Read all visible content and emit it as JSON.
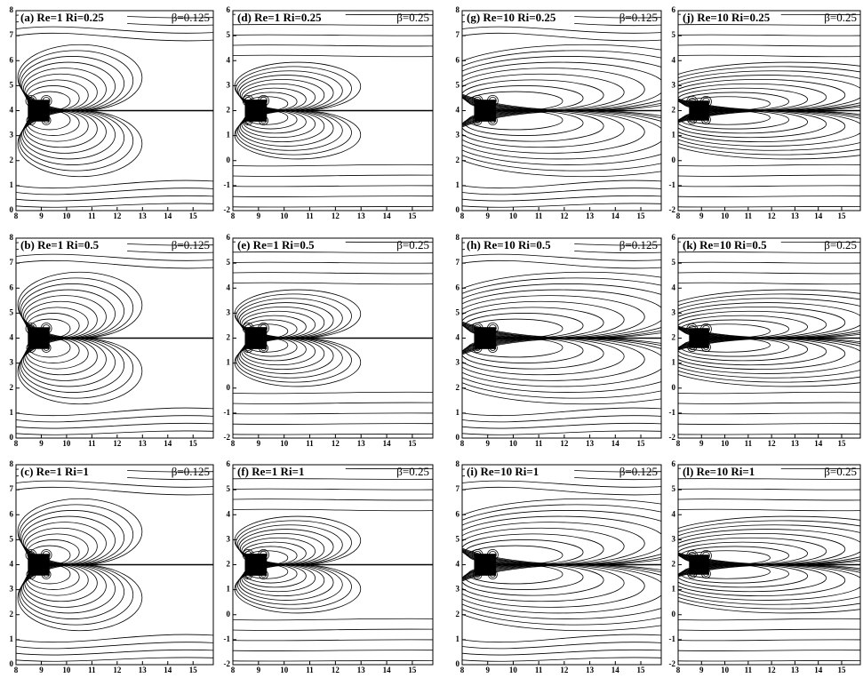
{
  "chart_data": [
    {
      "type": "contour",
      "title": "(a) Re=1 Ri=0.25",
      "annotation": "β=0.125",
      "xlim": [
        8,
        15.8
      ],
      "ylim": [
        0,
        8
      ],
      "xticks": [
        8,
        9,
        10,
        11,
        12,
        13,
        14,
        15
      ],
      "yticks": [
        0,
        1,
        2,
        3,
        4,
        5,
        6,
        7,
        8
      ]
    },
    {
      "type": "contour",
      "title": "(d) Re=1 Ri=0.25",
      "annotation": "β=0.25",
      "xlim": [
        8,
        15.8
      ],
      "ylim": [
        -2,
        6
      ],
      "xticks": [
        8,
        9,
        10,
        11,
        12,
        13,
        14,
        15
      ],
      "yticks": [
        -2,
        -1,
        0,
        1,
        2,
        3,
        4,
        5,
        6
      ]
    },
    {
      "type": "contour",
      "title": "(g) Re=10 Ri=0.25",
      "annotation": "β=0.125",
      "xlim": [
        8,
        15.8
      ],
      "ylim": [
        0,
        8
      ],
      "xticks": [
        8,
        9,
        10,
        11,
        12,
        13,
        14,
        15
      ],
      "yticks": [
        0,
        1,
        2,
        3,
        4,
        5,
        6,
        7,
        8
      ]
    },
    {
      "type": "contour",
      "title": "(j) Re=10 Ri=0.25",
      "annotation": "β=0.25",
      "xlim": [
        8,
        15.8
      ],
      "ylim": [
        -2,
        6
      ],
      "xticks": [
        8,
        9,
        10,
        11,
        12,
        13,
        14,
        15
      ],
      "yticks": [
        -2,
        -1,
        0,
        1,
        2,
        3,
        4,
        5,
        6
      ]
    },
    {
      "type": "contour",
      "title": "(b) Re=1 Ri=0.5",
      "annotation": "β=0.125",
      "xlim": [
        8,
        15.8
      ],
      "ylim": [
        0,
        8
      ],
      "xticks": [
        8,
        9,
        10,
        11,
        12,
        13,
        14,
        15
      ],
      "yticks": [
        0,
        1,
        2,
        3,
        4,
        5,
        6,
        7,
        8
      ]
    },
    {
      "type": "contour",
      "title": "(e) Re=1 Ri=0.5",
      "annotation": "β=0.25",
      "xlim": [
        8,
        15.8
      ],
      "ylim": [
        -2,
        6
      ],
      "xticks": [
        8,
        9,
        10,
        11,
        12,
        13,
        14,
        15
      ],
      "yticks": [
        -2,
        -1,
        0,
        1,
        2,
        3,
        4,
        5,
        6
      ]
    },
    {
      "type": "contour",
      "title": "(h) Re=10 Ri=0.5",
      "annotation": "β=0.125",
      "xlim": [
        8,
        15.8
      ],
      "ylim": [
        0,
        8
      ],
      "xticks": [
        8,
        9,
        10,
        11,
        12,
        13,
        14,
        15
      ],
      "yticks": [
        0,
        1,
        2,
        3,
        4,
        5,
        6,
        7,
        8
      ]
    },
    {
      "type": "contour",
      "title": "(k) Re=10 Ri=0.5",
      "annotation": "β=0.25",
      "xlim": [
        8,
        15.8
      ],
      "ylim": [
        -2,
        6
      ],
      "xticks": [
        8,
        9,
        10,
        11,
        12,
        13,
        14,
        15
      ],
      "yticks": [
        -2,
        -1,
        0,
        1,
        2,
        3,
        4,
        5,
        6
      ]
    },
    {
      "type": "contour",
      "title": "(c) Re=1 Ri=1",
      "annotation": "β=0.125",
      "xlim": [
        8,
        15.8
      ],
      "ylim": [
        0,
        8
      ],
      "xticks": [
        8,
        9,
        10,
        11,
        12,
        13,
        14,
        15
      ],
      "yticks": [
        0,
        1,
        2,
        3,
        4,
        5,
        6,
        7,
        8
      ]
    },
    {
      "type": "contour",
      "title": "(f) Re=1 Ri=1",
      "annotation": "β=0.25",
      "xlim": [
        8,
        15.8
      ],
      "ylim": [
        -2,
        6
      ],
      "xticks": [
        8,
        9,
        10,
        11,
        12,
        13,
        14,
        15
      ],
      "yticks": [
        -2,
        -1,
        0,
        1,
        2,
        3,
        4,
        5,
        6
      ]
    },
    {
      "type": "contour",
      "title": "(i) Re=10 Ri=1",
      "annotation": "β=0.125",
      "xlim": [
        8,
        15.8
      ],
      "ylim": [
        0,
        8
      ],
      "xticks": [
        8,
        9,
        10,
        11,
        12,
        13,
        14,
        15
      ],
      "yticks": [
        0,
        1,
        2,
        3,
        4,
        5,
        6,
        7,
        8
      ]
    },
    {
      "type": "contour",
      "title": "(l) Re=10 Ri=1",
      "annotation": "β=0.25",
      "xlim": [
        8,
        15.8
      ],
      "ylim": [
        -2,
        6
      ],
      "xticks": [
        8,
        9,
        10,
        11,
        12,
        13,
        14,
        15
      ],
      "yticks": [
        -2,
        -1,
        0,
        1,
        2,
        3,
        4,
        5,
        6
      ]
    }
  ]
}
